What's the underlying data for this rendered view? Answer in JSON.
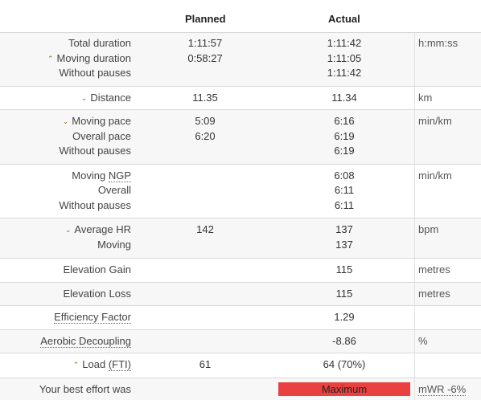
{
  "header": {
    "planned": "Planned",
    "actual": "Actual"
  },
  "duration": {
    "total_label": "Total duration",
    "total_planned": "1:11:57",
    "total_actual": "1:11:42",
    "moving_label": "Moving duration",
    "moving_planned": "0:58:27",
    "moving_actual": "1:11:05",
    "nopause_label": "Without pauses",
    "nopause_actual": "1:11:42",
    "unit": "h:mm:ss"
  },
  "distance": {
    "label": "Distance",
    "planned": "11.35",
    "actual": "11.34",
    "unit": "km"
  },
  "pace": {
    "moving_label": "Moving pace",
    "moving_planned": "5:09",
    "moving_actual": "6:16",
    "overall_label": "Overall pace",
    "overall_planned": "6:20",
    "overall_actual": "6:19",
    "nopause_label": "Without pauses",
    "nopause_actual": "6:19",
    "unit": "min/km"
  },
  "ngp": {
    "moving_prefix": "Moving ",
    "moving_abbr": "NGP",
    "moving_actual": "6:08",
    "overall_label": "Overall",
    "overall_actual": "6:11",
    "nopause_label": "Without pauses",
    "nopause_actual": "6:11",
    "unit": "min/km"
  },
  "hr": {
    "avg_label": "Average HR",
    "avg_planned": "142",
    "avg_actual": "137",
    "moving_label": "Moving",
    "moving_actual": "137",
    "unit": "bpm"
  },
  "elev_gain": {
    "label": "Elevation Gain",
    "actual": "115",
    "unit": "metres"
  },
  "elev_loss": {
    "label": "Elevation Loss",
    "actual": "115",
    "unit": "metres"
  },
  "ef": {
    "label": "Efficiency Factor",
    "actual": "1.29"
  },
  "decoupling": {
    "label": "Aerobic Decoupling",
    "actual": "-8.86",
    "unit": "%"
  },
  "load": {
    "label_prefix": "Load ",
    "label_abbr": "(FTI)",
    "planned": "61",
    "actual": "64 (70%)"
  },
  "best": {
    "label": "Your best effort was",
    "bar_label": "Maximum",
    "bar_color": "#e8413f",
    "unit": "mWR -6%"
  }
}
